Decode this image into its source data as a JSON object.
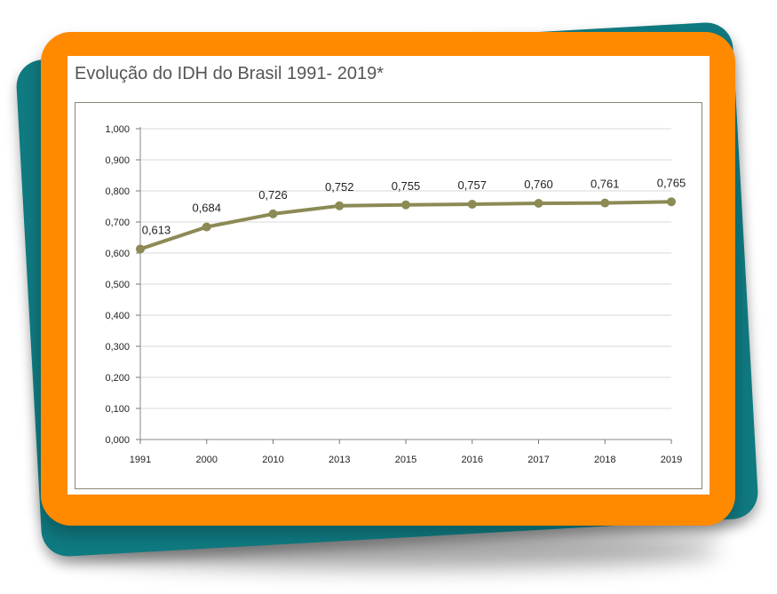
{
  "chart_data": {
    "type": "line",
    "title": "Evolução do IDH do Brasil 1991- 2019*",
    "categories": [
      "1991",
      "2000",
      "2010",
      "2013",
      "2015",
      "2016",
      "2017",
      "2018",
      "2019"
    ],
    "series": [
      {
        "values": [
          0.613,
          0.684,
          0.726,
          0.752,
          0.755,
          0.757,
          0.76,
          0.761,
          0.765
        ],
        "labels": [
          "0,613",
          "0,684",
          "0,726",
          "0,752",
          "0,755",
          "0,757",
          "0,760",
          "0,761",
          "0,765"
        ],
        "color": "#8c8a55"
      }
    ],
    "y_ticks": [
      "0,000",
      "0,100",
      "0,200",
      "0,300",
      "0,400",
      "0,500",
      "0,600",
      "0,700",
      "0,800",
      "0,900",
      "1,000"
    ],
    "ylim": [
      0,
      1
    ],
    "grid": true,
    "legend": "none"
  },
  "colors": {
    "orange_frame": "#ff8a00",
    "teal_back": "#0f7a80",
    "line": "#8c8a55",
    "grid": "#d9d9d9"
  }
}
